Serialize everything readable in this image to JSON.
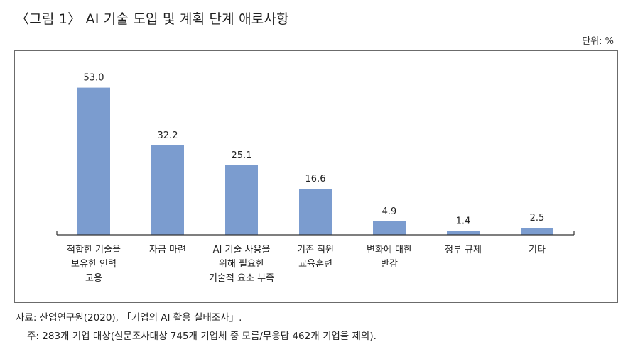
{
  "title": "〈그림 1〉 AI 기술 도입 및 계획 단계 애로사항",
  "unit_label": "단위: %",
  "chart_data": {
    "type": "bar",
    "title": "〈그림 1〉 AI 기술 도입 및 계획 단계 애로사항",
    "xlabel": "",
    "ylabel": "",
    "unit": "%",
    "ylim": [
      0,
      58
    ],
    "grid": false,
    "bar_color": "#7b9ccf",
    "categories": [
      [
        "적합한 기술을",
        "보유한 인력",
        "고용"
      ],
      [
        "자금 마련"
      ],
      [
        "AI 기술 사용을",
        "위해 필요한",
        "기술적 요소 부족"
      ],
      [
        "기존 직원",
        "교육훈련"
      ],
      [
        "변화에 대한",
        "반감"
      ],
      [
        "정부 규제"
      ],
      [
        "기타"
      ]
    ],
    "values": [
      53.0,
      32.2,
      25.1,
      16.6,
      4.9,
      1.4,
      2.5
    ],
    "value_labels": [
      "53.0",
      "32.2",
      "25.1",
      "16.6",
      "4.9",
      "1.4",
      "2.5"
    ]
  },
  "source": "자료: 산업연구원(2020), 「기업의 AI 활용 실태조사」.",
  "note": "주: 283개 기업 대상(설문조사대상 745개 기업체 중 모름/무응답 462개 기업을 제외)."
}
